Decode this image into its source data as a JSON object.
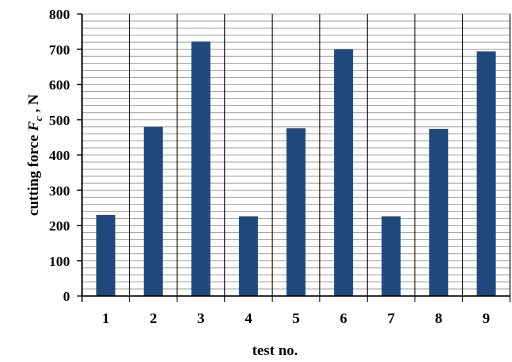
{
  "chart_data": {
    "type": "bar",
    "categories": [
      "1",
      "2",
      "3",
      "4",
      "5",
      "6",
      "7",
      "8",
      "9"
    ],
    "series": [
      {
        "values": [
          230,
          480,
          722,
          226,
          476,
          700,
          226,
          474,
          694
        ],
        "color": "#1f497d"
      }
    ],
    "xlabel": "test no.",
    "ylabel_parts": {
      "prefix": "cutting force ",
      "symbol": "F",
      "subscript": "c",
      "suffix": " , N"
    },
    "ylim": [
      0,
      800
    ],
    "yticks": [
      0,
      100,
      200,
      300,
      400,
      500,
      600,
      700,
      800
    ],
    "minor_grid_step": 20,
    "grid": true,
    "category_separators": true
  }
}
